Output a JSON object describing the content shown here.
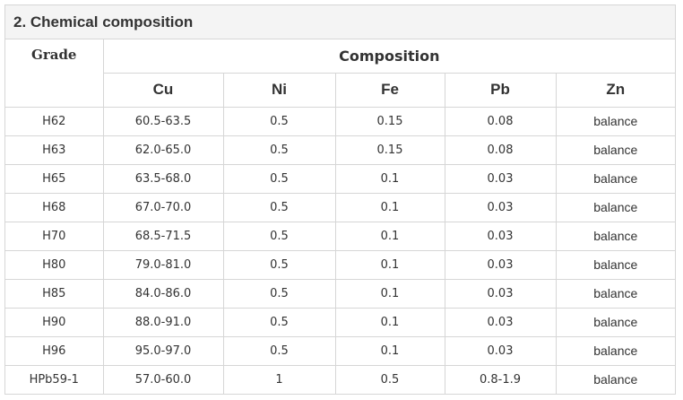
{
  "section": {
    "title": "2. Chemical composition"
  },
  "table": {
    "grade_header": "Grade",
    "composition_header": "Composition",
    "elements": [
      "Cu",
      "Ni",
      "Fe",
      "Pb",
      "Zn"
    ],
    "rows": [
      [
        "H62",
        "60.5-63.5",
        "0.5",
        "0.15",
        "0.08",
        "balance"
      ],
      [
        "H63",
        "62.0-65.0",
        "0.5",
        "0.15",
        "0.08",
        "balance"
      ],
      [
        "H65",
        "63.5-68.0",
        "0.5",
        "0.1",
        "0.03",
        "balance"
      ],
      [
        "H68",
        "67.0-70.0",
        "0.5",
        "0.1",
        "0.03",
        "balance"
      ],
      [
        "H70",
        "68.5-71.5",
        "0.5",
        "0.1",
        "0.03",
        "balance"
      ],
      [
        "H80",
        "79.0-81.0",
        "0.5",
        "0.1",
        "0.03",
        "balance"
      ],
      [
        "H85",
        "84.0-86.0",
        "0.5",
        "0.1",
        "0.03",
        "balance"
      ],
      [
        "H90",
        "88.0-91.0",
        "0.5",
        "0.1",
        "0.03",
        "balance"
      ],
      [
        "H96",
        "95.0-97.0",
        "0.5",
        "0.1",
        "0.03",
        "balance"
      ],
      [
        "HPb59-1",
        "57.0-60.0",
        "1",
        "0.5",
        "0.8-1.9",
        "balance"
      ]
    ]
  }
}
